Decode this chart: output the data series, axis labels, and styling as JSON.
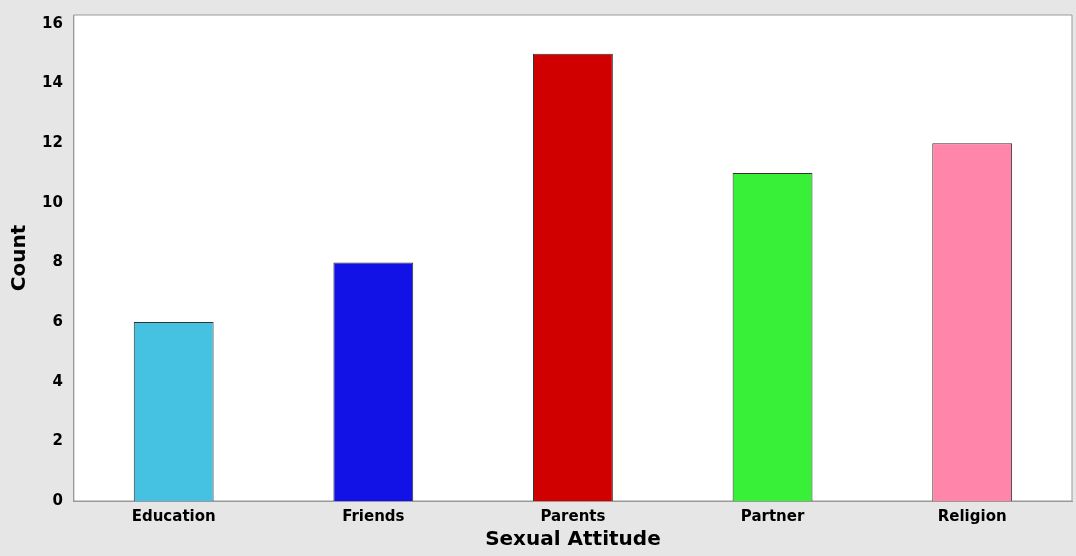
{
  "chart_data": {
    "type": "bar",
    "xlabel": "Sexual Attitude",
    "ylabel": "Count",
    "categories": [
      "Education",
      "Friends",
      "Parents",
      "Partner",
      "Religion"
    ],
    "values": [
      6,
      8,
      15,
      11,
      12
    ],
    "colors": [
      "#45c1e1",
      "#1212e6",
      "#d00000",
      "#37f037",
      "#ff85aa"
    ],
    "ylim": [
      0,
      16.3
    ],
    "yticks": [
      0,
      2,
      4,
      6,
      8,
      10,
      12,
      14,
      16
    ],
    "grid": false,
    "legend": false
  }
}
